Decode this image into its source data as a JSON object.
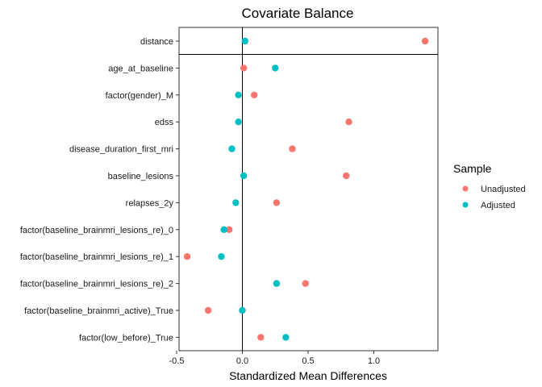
{
  "chart_data": {
    "type": "scatter",
    "title": "Covariate Balance",
    "xlabel": "Standardized Mean Differences",
    "ylabel": "",
    "xlim": [
      -0.5,
      1.5
    ],
    "x_ticks": [
      "-0.5",
      "0.0",
      "0.5",
      "1.0"
    ],
    "x_tick_values": [
      -0.5,
      0,
      0.5,
      1.0
    ],
    "reference_line_x": 0,
    "grid": false,
    "legend": {
      "title": "Sample",
      "placement": "right",
      "entries": [
        {
          "name": "Unadjusted",
          "color": "#F8766D"
        },
        {
          "name": "Adjusted",
          "color": "#00BFC4"
        }
      ]
    },
    "categories": [
      "distance",
      "age_at_baseline",
      "factor(gender)_M",
      "edss",
      "disease_duration_first_mri",
      "baseline_lesions",
      "relapses_2y",
      "factor(baseline_brainmri_lesions_re)_0",
      "factor(baseline_brainmri_lesions_re)_1",
      "factor(baseline_brainmri_lesions_re)_2",
      "factor(baseline_brainmri_active)_True",
      "factor(low_before)_True"
    ],
    "series": [
      {
        "name": "Unadjusted",
        "color": "#F8766D",
        "values": [
          1.39,
          0.01,
          0.09,
          0.81,
          0.38,
          0.79,
          0.26,
          -0.1,
          -0.42,
          0.48,
          -0.26,
          0.14
        ]
      },
      {
        "name": "Adjusted",
        "color": "#00BFC4",
        "values": [
          0.02,
          0.25,
          -0.03,
          -0.03,
          -0.08,
          0.01,
          -0.05,
          -0.14,
          -0.16,
          0.26,
          0.0,
          0.33
        ]
      }
    ]
  }
}
